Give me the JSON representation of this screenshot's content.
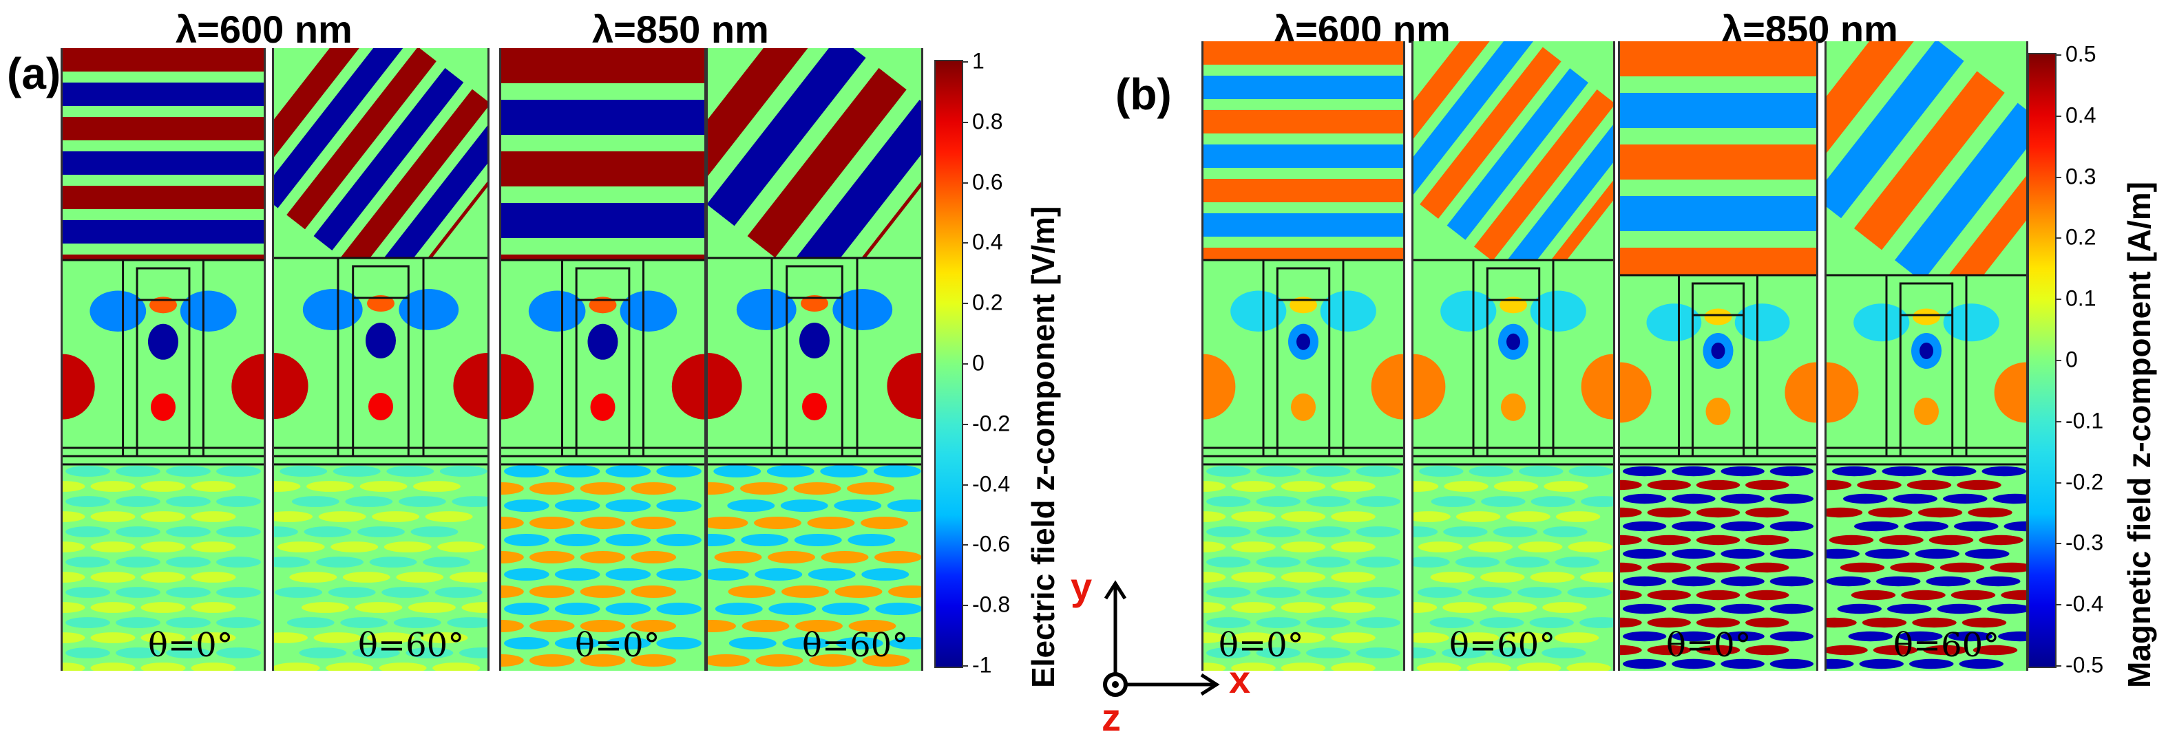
{
  "panels": [
    {
      "label": "(a)",
      "wavelength_titles": [
        "λ=600 nm",
        "λ=850 nm"
      ],
      "angle_labels": [
        "θ=0°",
        "θ=60°",
        "θ=0°",
        "θ=60°"
      ],
      "colorbar": {
        "title": "Electric field z-component [V/m]",
        "range": [
          -1,
          1
        ],
        "ticks": [
          "1",
          "0.8",
          "0.6",
          "0.4",
          "0.2",
          "0",
          "-0.2",
          "-0.4",
          "-0.6",
          "-0.8",
          "-1"
        ]
      }
    },
    {
      "label": "(b)",
      "wavelength_titles": [
        "λ=600 nm",
        "λ=850 nm"
      ],
      "angle_labels": [
        "θ=0°",
        "θ=60°",
        "θ=0°",
        "θ=60°"
      ],
      "colorbar": {
        "title": "Magnetic field z-component [A/m]",
        "range": [
          -0.5,
          0.5
        ],
        "ticks": [
          "0.5",
          "0.4",
          "0.3",
          "0.2",
          "0.1",
          "0",
          "-0.1",
          "-0.2",
          "-0.3",
          "-0.4",
          "-0.5"
        ]
      }
    }
  ],
  "axes": {
    "y": "y",
    "x": "x",
    "z": "z"
  },
  "colors": {
    "colormap": [
      "#00008f",
      "#0000ff",
      "#00bfff",
      "#2fe6e6",
      "#80ff80",
      "#ffff00",
      "#ff8000",
      "#ff0000",
      "#800000"
    ],
    "axis_letters": "#e8180c"
  }
}
